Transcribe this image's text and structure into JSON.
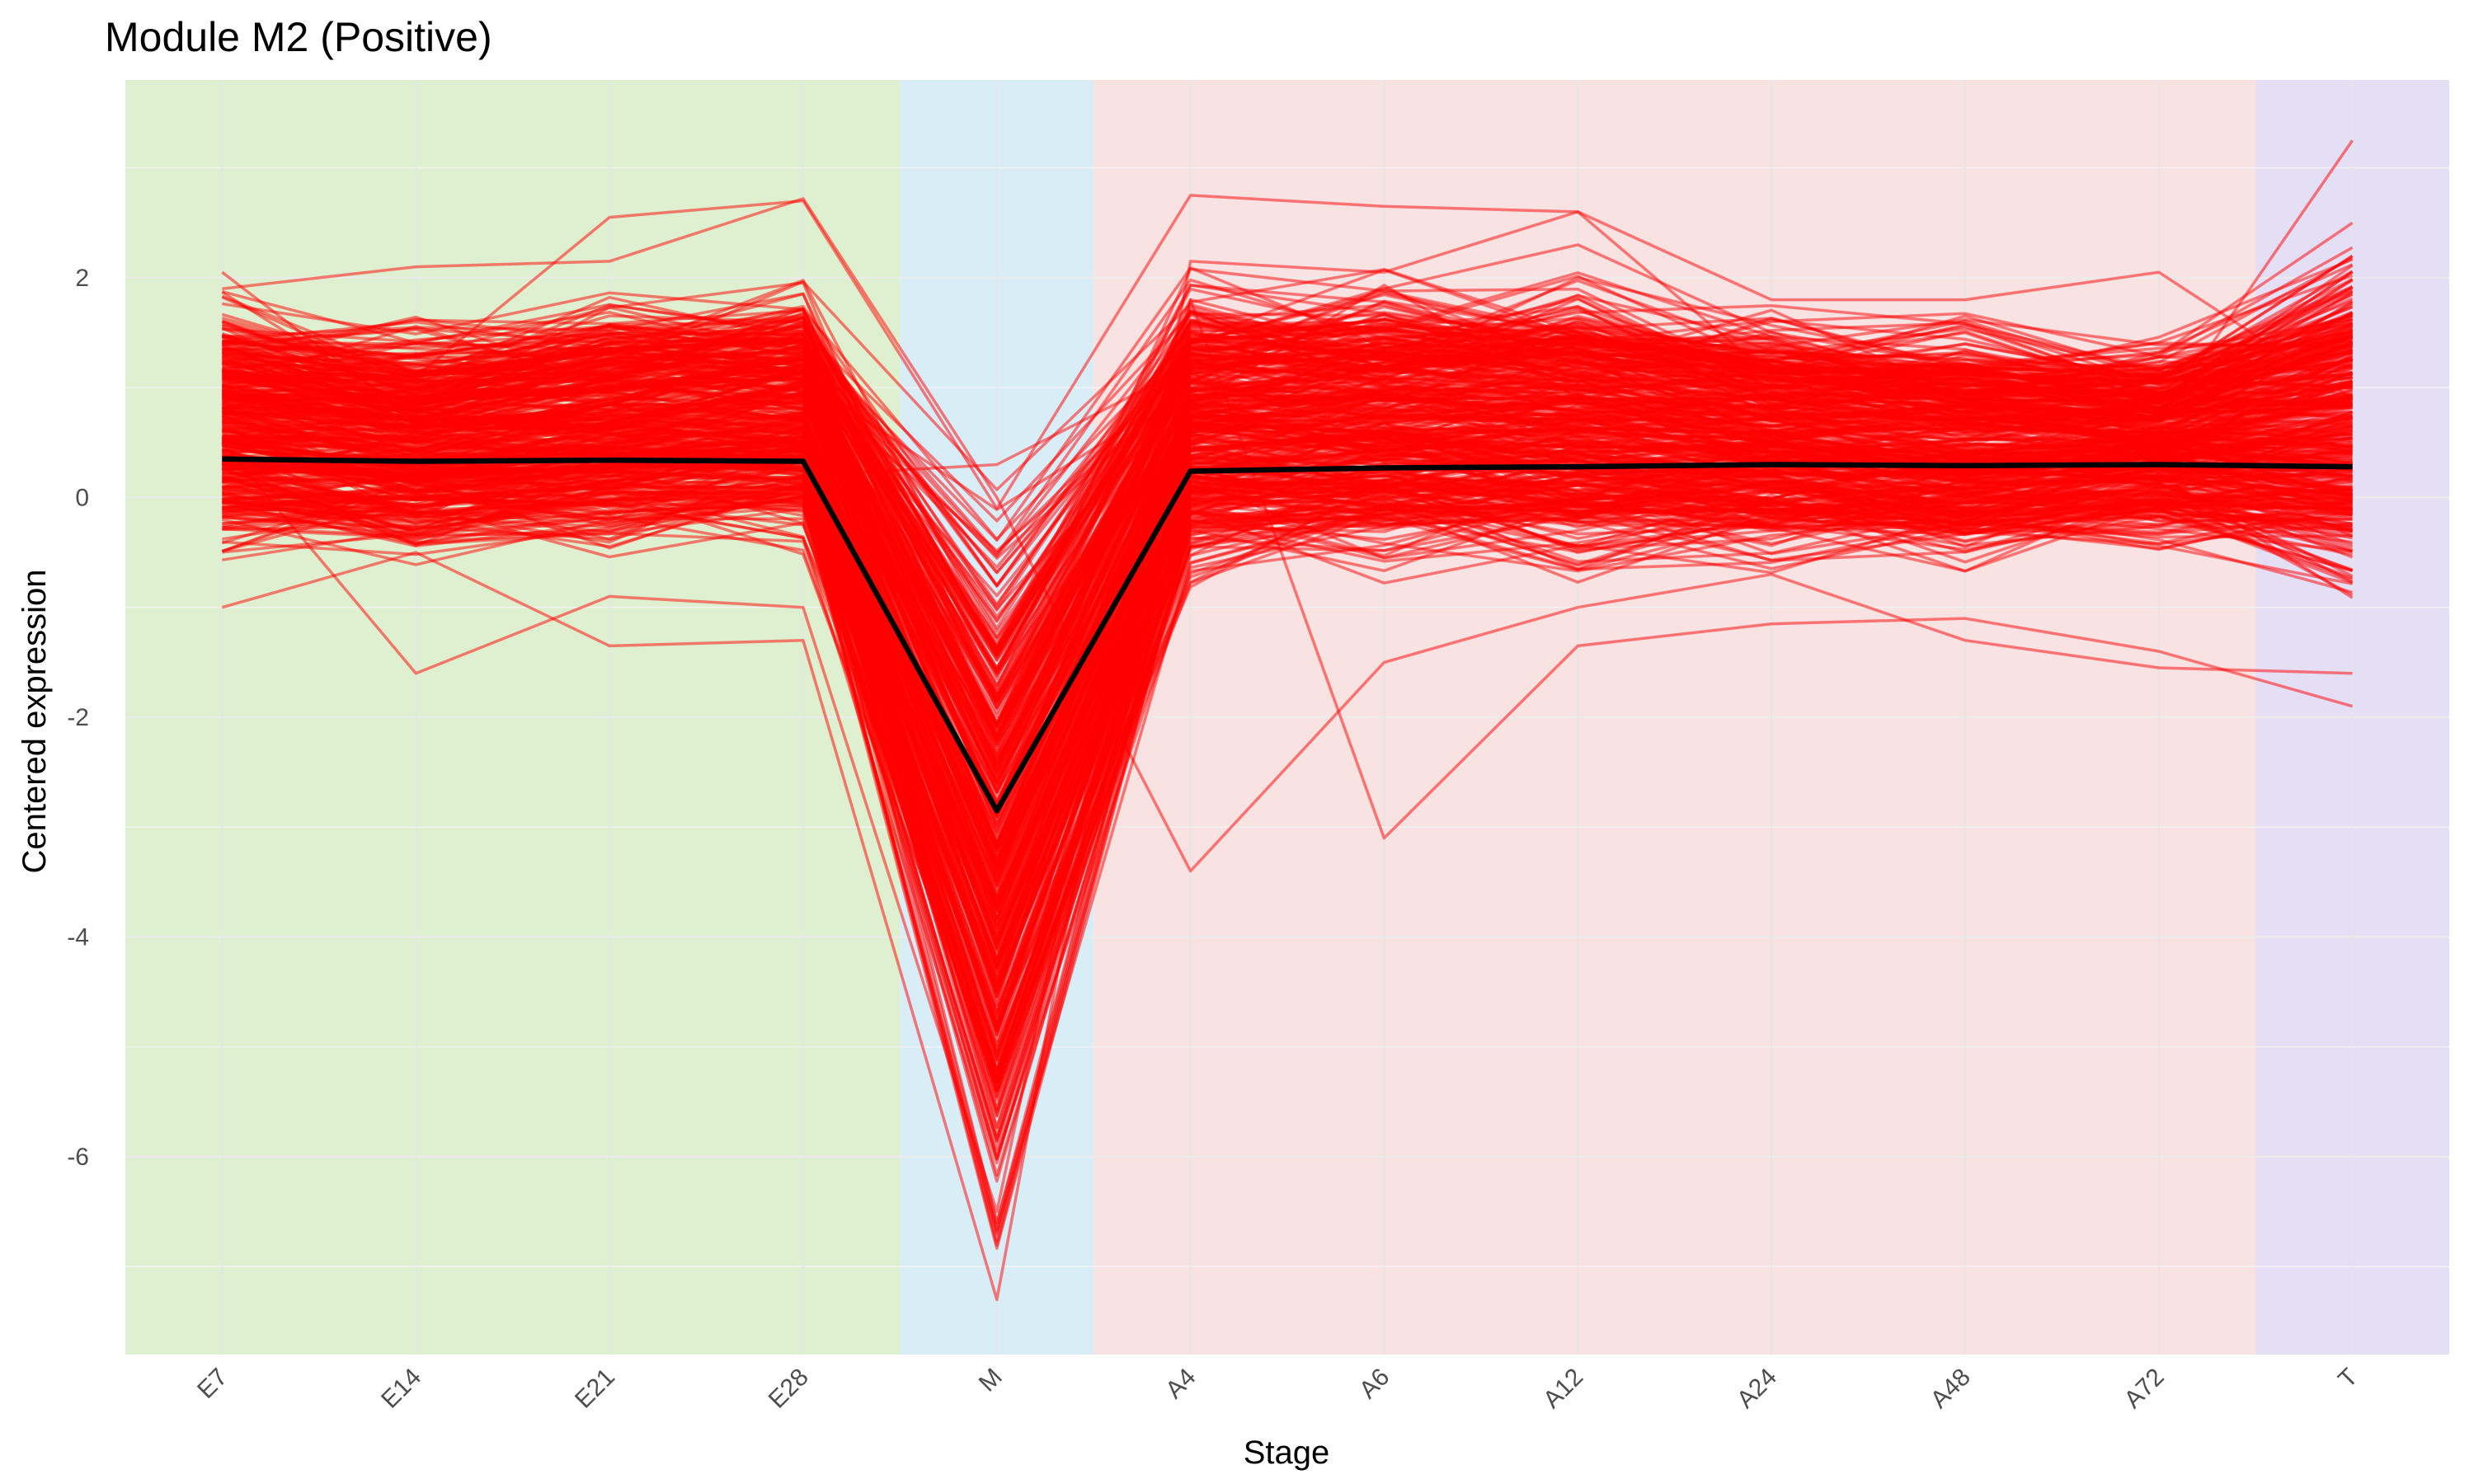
{
  "chart_data": {
    "type": "line",
    "title": "Module M2 (Positive)",
    "xlabel": "Stage",
    "ylabel": "Centered expression",
    "categories": [
      "E7",
      "E14",
      "E21",
      "E28",
      "M",
      "A4",
      "A6",
      "A12",
      "A24",
      "A48",
      "A72",
      "T"
    ],
    "ylim": [
      -7.8,
      3.8
    ],
    "yticks": [
      -6,
      -4,
      -2,
      0,
      2
    ],
    "grid": true,
    "legend": "none",
    "background_bands": [
      {
        "from": "E7",
        "to": "E28",
        "color": "#dff0d0"
      },
      {
        "from": "M",
        "to": "M",
        "color": "#d9edf7"
      },
      {
        "from": "A4",
        "to": "A72",
        "color": "#f8e2e2"
      },
      {
        "from": "T",
        "to": "T",
        "color": "#e5dff5"
      }
    ],
    "series": [
      {
        "role": "gene-profiles",
        "color": "#ff0000",
        "opacity": 0.5,
        "mean_values": [
          0.35,
          0.33,
          0.34,
          0.33,
          -2.85,
          0.24,
          0.27,
          0.28,
          0.3,
          0.29,
          0.3,
          0.28
        ],
        "spread_low": [
          -0.6,
          -0.65,
          -0.6,
          -0.55,
          -6.9,
          -0.9,
          -0.8,
          -0.8,
          -0.7,
          -0.75,
          -0.5,
          -1.0
        ],
        "spread_high": [
          1.9,
          1.65,
          1.9,
          2.0,
          0.15,
          2.1,
          2.1,
          2.1,
          1.8,
          1.7,
          1.5,
          2.3
        ],
        "outlier_profiles": [
          [
            1.9,
            2.1,
            2.15,
            2.72,
            0.0,
            -3.4,
            -1.5,
            -1.0,
            -0.7,
            -1.3,
            -1.55,
            -1.6
          ],
          [
            1.0,
            1.1,
            2.55,
            2.7,
            -0.1,
            2.75,
            2.65,
            2.6,
            1.1,
            0.9,
            0.7,
            3.25
          ],
          [
            -1.0,
            -0.5,
            -1.35,
            -1.3,
            -7.3,
            2.15,
            2.05,
            2.6,
            1.8,
            1.8,
            2.05,
            0.9
          ],
          [
            0.5,
            -1.6,
            -0.9,
            -1.0,
            -6.5,
            1.8,
            -3.1,
            -1.35,
            -1.15,
            -1.1,
            -1.4,
            -1.9
          ],
          [
            2.05,
            0.7,
            0.4,
            0.2,
            0.3,
            1.2,
            1.9,
            2.3,
            1.5,
            1.2,
            1.3,
            2.5
          ]
        ]
      },
      {
        "role": "module-mean",
        "color": "#000000",
        "values": [
          0.35,
          0.33,
          0.34,
          0.33,
          -2.85,
          0.24,
          0.27,
          0.28,
          0.3,
          0.29,
          0.3,
          0.28
        ]
      }
    ]
  }
}
